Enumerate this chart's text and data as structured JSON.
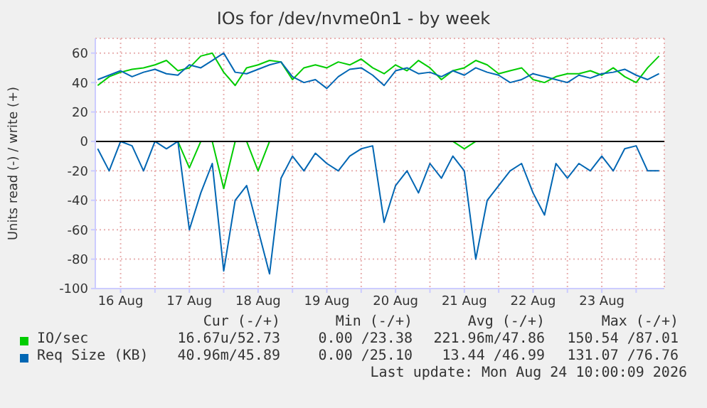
{
  "chart_data": {
    "type": "line",
    "title": "IOs for /dev/nvme0n1 - by week",
    "ylabel": "Units read (-) / write (+)",
    "x": [
      "2026-08-16T04:00",
      "2026-08-16T08:00",
      "2026-08-16T12:00",
      "2026-08-16T16:00",
      "2026-08-16T20:00",
      "2026-08-17T00:00",
      "2026-08-17T04:00",
      "2026-08-17T08:00",
      "2026-08-17T12:00",
      "2026-08-17T16:00",
      "2026-08-17T20:00",
      "2026-08-18T00:00",
      "2026-08-18T04:00",
      "2026-08-18T08:00",
      "2026-08-18T12:00",
      "2026-08-18T16:00",
      "2026-08-18T20:00",
      "2026-08-19T00:00",
      "2026-08-19T04:00",
      "2026-08-19T08:00",
      "2026-08-19T12:00",
      "2026-08-19T16:00",
      "2026-08-19T20:00",
      "2026-08-20T00:00",
      "2026-08-20T04:00",
      "2026-08-20T08:00",
      "2026-08-20T12:00",
      "2026-08-20T16:00",
      "2026-08-20T20:00",
      "2026-08-21T00:00",
      "2026-08-21T04:00",
      "2026-08-21T08:00",
      "2026-08-21T12:00",
      "2026-08-21T16:00",
      "2026-08-21T20:00",
      "2026-08-22T00:00",
      "2026-08-22T04:00",
      "2026-08-22T08:00",
      "2026-08-22T12:00",
      "2026-08-22T16:00",
      "2026-08-22T20:00",
      "2026-08-23T00:00",
      "2026-08-23T04:00",
      "2026-08-23T08:00",
      "2026-08-23T12:00",
      "2026-08-23T16:00",
      "2026-08-23T20:00",
      "2026-08-24T00:00",
      "2026-08-24T04:00",
      "2026-08-24T08:00"
    ],
    "series": [
      {
        "name": "IO/sec",
        "color": "#00cc00",
        "values": [
          38,
          44,
          47,
          49,
          50,
          52,
          55,
          48,
          50,
          58,
          60,
          47,
          38,
          50,
          52,
          55,
          54,
          42,
          50,
          52,
          50,
          54,
          52,
          56,
          50,
          46,
          52,
          48,
          55,
          50,
          42,
          48,
          50,
          55,
          52,
          46,
          48,
          50,
          42,
          40,
          44,
          46,
          46,
          48,
          45,
          50,
          44,
          40,
          50,
          58
        ]
      },
      {
        "color": "#00cc00",
        "values": [
          null,
          null,
          null,
          null,
          null,
          null,
          null,
          0,
          -18,
          0,
          0,
          -32,
          0,
          0,
          -20,
          0,
          null,
          null,
          null,
          null,
          null,
          null,
          null,
          null,
          null,
          null,
          null,
          null,
          null,
          null,
          null,
          0,
          -5,
          0,
          null,
          null,
          null,
          null,
          null,
          null,
          null,
          null,
          null,
          null,
          null,
          null,
          null,
          null,
          null,
          null
        ]
      },
      {
        "name": "Req Size (KB)",
        "color": "#0066b3",
        "values": [
          42,
          45,
          48,
          44,
          47,
          49,
          46,
          45,
          52,
          50,
          55,
          60,
          47,
          46,
          49,
          52,
          54,
          44,
          40,
          42,
          36,
          44,
          49,
          50,
          45,
          38,
          48,
          50,
          46,
          47,
          44,
          48,
          45,
          50,
          47,
          45,
          40,
          42,
          46,
          44,
          42,
          40,
          45,
          43,
          46,
          47,
          49,
          45,
          42,
          46
        ]
      },
      {
        "color": "#0066b3",
        "values": [
          -5,
          -20,
          0,
          -3,
          -20,
          0,
          -5,
          0,
          -60,
          -35,
          -15,
          -88,
          -40,
          -30,
          -60,
          -90,
          -25,
          -10,
          -20,
          -8,
          -15,
          -20,
          -10,
          -5,
          -3,
          -55,
          -30,
          -20,
          -35,
          -15,
          -25,
          -10,
          -20,
          -80,
          -40,
          -30,
          -20,
          -15,
          -35,
          -50,
          -15,
          -25,
          -15,
          -20,
          -10,
          -20,
          -5,
          -3,
          -20,
          -20
        ]
      }
    ],
    "xlim": [
      "2026-08-16T03:10",
      "2026-08-24T09:50"
    ],
    "xticks": [
      {
        "value": "2026-08-16T12:00",
        "label": "16 Aug"
      },
      {
        "value": "2026-08-17T00:00",
        "label": null
      },
      {
        "value": "2026-08-17T12:00",
        "label": "17 Aug"
      },
      {
        "value": "2026-08-18T00:00",
        "label": null
      },
      {
        "value": "2026-08-18T12:00",
        "label": "18 Aug"
      },
      {
        "value": "2026-08-19T00:00",
        "label": null
      },
      {
        "value": "2026-08-19T12:00",
        "label": "19 Aug"
      },
      {
        "value": "2026-08-20T00:00",
        "label": null
      },
      {
        "value": "2026-08-20T12:00",
        "label": "20 Aug"
      },
      {
        "value": "2026-08-21T00:00",
        "label": null
      },
      {
        "value": "2026-08-21T12:00",
        "label": "21 Aug"
      },
      {
        "value": "2026-08-22T00:00",
        "label": null
      },
      {
        "value": "2026-08-22T12:00",
        "label": "22 Aug"
      },
      {
        "value": "2026-08-23T00:00",
        "label": null
      },
      {
        "value": "2026-08-23T12:00",
        "label": "23 Aug"
      },
      {
        "value": "2026-08-24T00:00",
        "label": null
      }
    ],
    "ylim": [
      -100,
      70
    ],
    "yticks": [
      -100,
      -80,
      -60,
      -40,
      -20,
      0,
      20,
      40,
      60
    ],
    "ref_lines": [
      {
        "axis": "y",
        "value": 0,
        "color": "#000000"
      }
    ],
    "grid": true,
    "legend": "bottom",
    "annotations": [
      "Cur (-/+)",
      "Min (-/+)",
      "Avg (-/+)",
      "Max (-/+)",
      "16.67u/52.73",
      "0.00 /23.38",
      "221.96m/47.86",
      "150.54 /87.01",
      "40.96m/45.89",
      "0.00 /25.10",
      "13.44 /46.99",
      "131.07 /76.76",
      "Last update: Mon Aug 24 10:00:09 2026"
    ]
  }
}
